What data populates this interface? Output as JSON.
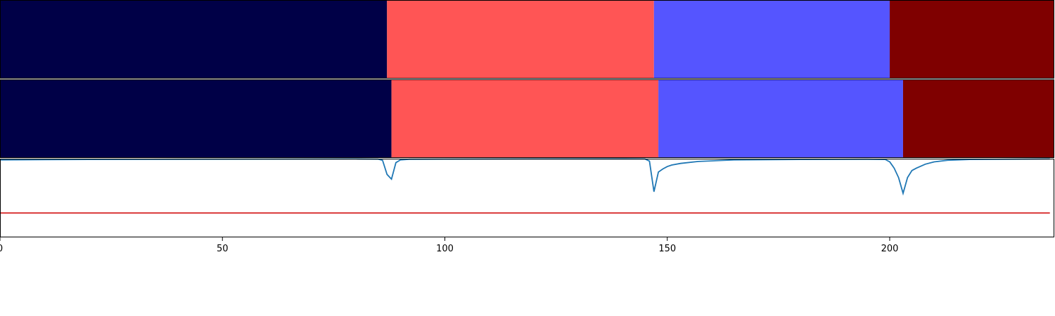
{
  "chart_data": [
    {
      "type": "heatmap",
      "title": "",
      "segments": [
        {
          "start": 0,
          "end": 87,
          "color": "#000047"
        },
        {
          "start": 87,
          "end": 147,
          "color": "#ff5555"
        },
        {
          "start": 147,
          "end": 200,
          "color": "#5555ff"
        },
        {
          "start": 200,
          "end": 237,
          "color": "#7f0000"
        }
      ],
      "xlim": [
        0,
        237
      ]
    },
    {
      "type": "heatmap",
      "title": "",
      "segments": [
        {
          "start": 0,
          "end": 88,
          "color": "#000047"
        },
        {
          "start": 88,
          "end": 148,
          "color": "#ff5555"
        },
        {
          "start": 148,
          "end": 203,
          "color": "#5555ff"
        },
        {
          "start": 203,
          "end": 237,
          "color": "#7f0000"
        }
      ],
      "xlim": [
        0,
        237
      ]
    },
    {
      "type": "line",
      "title": "",
      "xlabel": "",
      "ylabel": "",
      "xlim": [
        0,
        237
      ],
      "ylim": [
        0,
        1
      ],
      "xticks": [
        "0",
        "50",
        "100",
        "150",
        "200"
      ],
      "series": [
        {
          "color": "#1f77b4",
          "points": [
            [
              0,
              0.985
            ],
            [
              10,
              0.988
            ],
            [
              20,
              0.99
            ],
            [
              40,
              0.993
            ],
            [
              60,
              0.995
            ],
            [
              80,
              0.996
            ],
            [
              85,
              0.995
            ],
            [
              86,
              0.98
            ],
            [
              87,
              0.8
            ],
            [
              88,
              0.74
            ],
            [
              89,
              0.95
            ],
            [
              90,
              0.985
            ],
            [
              92,
              0.993
            ],
            [
              100,
              0.995
            ],
            [
              120,
              0.996
            ],
            [
              140,
              0.997
            ],
            [
              145,
              0.996
            ],
            [
              146,
              0.97
            ],
            [
              147,
              0.58
            ],
            [
              148,
              0.83
            ],
            [
              149,
              0.87
            ],
            [
              150,
              0.9
            ],
            [
              151,
              0.92
            ],
            [
              153,
              0.94
            ],
            [
              157,
              0.965
            ],
            [
              165,
              0.985
            ],
            [
              180,
              0.99
            ],
            [
              195,
              0.993
            ],
            [
              199,
              0.99
            ],
            [
              200,
              0.96
            ],
            [
              201,
              0.88
            ],
            [
              202,
              0.76
            ],
            [
              203,
              0.56
            ],
            [
              204,
              0.76
            ],
            [
              205,
              0.85
            ],
            [
              206,
              0.88
            ],
            [
              208,
              0.93
            ],
            [
              210,
              0.96
            ],
            [
              213,
              0.98
            ],
            [
              218,
              0.99
            ],
            [
              230,
              0.995
            ],
            [
              236,
              0.996
            ]
          ]
        },
        {
          "color": "#d62728",
          "points": [
            [
              0,
              0.31
            ],
            [
              236,
              0.31
            ]
          ]
        }
      ]
    }
  ]
}
